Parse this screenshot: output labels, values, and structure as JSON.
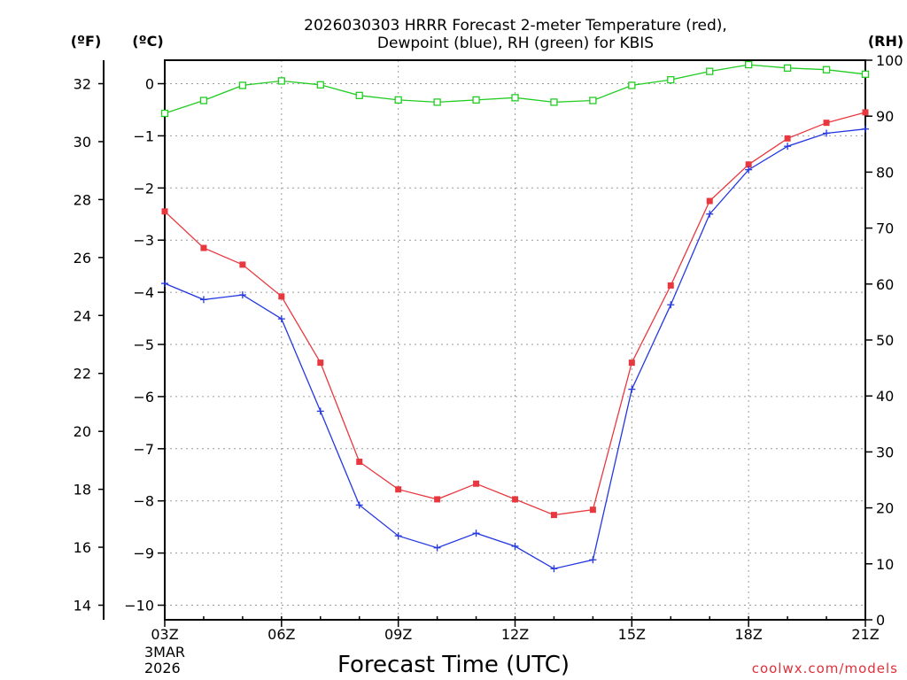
{
  "chart_data": {
    "type": "line",
    "title_lines": [
      "2026030303 HRRR Forecast 2-meter Temperature (red),",
      "Dewpoint (blue), RH (green) for KBIS"
    ],
    "xlabel": "Forecast Time (UTC)",
    "x_tick_labels": [
      "03Z",
      "06Z",
      "09Z",
      "12Z",
      "15Z",
      "18Z",
      "21Z"
    ],
    "x_date_labels": [
      "3MAR",
      "2026"
    ],
    "x_hours": [
      3,
      4,
      5,
      6,
      7,
      8,
      9,
      10,
      11,
      12,
      13,
      14,
      15,
      16,
      17,
      18,
      19,
      20,
      21
    ],
    "axis_units": {
      "fahrenheit": "(ºF)",
      "celsius": "(ºC)",
      "rh": "(RH)"
    },
    "celsius_axis": {
      "range": [
        -10.28,
        0.45
      ],
      "ticks": [
        0,
        -1,
        -2,
        -3,
        -4,
        -5,
        -6,
        -7,
        -8,
        -9,
        -10
      ]
    },
    "fahrenheit_axis": {
      "ticks": [
        32,
        30,
        28,
        26,
        24,
        22,
        20,
        18,
        16,
        14
      ]
    },
    "rh_axis": {
      "range": [
        0,
        100
      ],
      "ticks": [
        100,
        90,
        80,
        70,
        60,
        50,
        40,
        30,
        20,
        10,
        0
      ]
    },
    "series": [
      {
        "name": "Temperature",
        "units": "degC",
        "color": "#e8383f",
        "marker": "square",
        "values": [
          -2.45,
          -3.15,
          -3.47,
          -4.08,
          -5.35,
          -7.25,
          -7.78,
          -7.97,
          -7.67,
          -7.97,
          -8.27,
          -8.17,
          -5.35,
          -3.87,
          -2.25,
          -1.55,
          -1.05,
          -0.75,
          -0.55
        ]
      },
      {
        "name": "Dewpoint",
        "units": "degC",
        "color": "#2538e0",
        "marker": "plus",
        "values": [
          -3.83,
          -4.14,
          -4.05,
          -4.51,
          -6.28,
          -8.08,
          -8.67,
          -8.9,
          -8.62,
          -8.87,
          -9.3,
          -9.13,
          -5.86,
          -4.24,
          -2.5,
          -1.65,
          -1.2,
          -0.95,
          -0.87
        ]
      },
      {
        "name": "RH",
        "units": "percent",
        "color": "#22cc22",
        "marker": "open-square",
        "values": [
          90.5,
          92.8,
          95.5,
          96.3,
          95.6,
          93.7,
          92.9,
          92.5,
          92.9,
          93.3,
          92.5,
          92.8,
          95.5,
          96.5,
          98.0,
          99.2,
          98.6,
          98.3,
          97.5
        ]
      }
    ],
    "grid": true
  },
  "credit": "coolwx.com/models"
}
